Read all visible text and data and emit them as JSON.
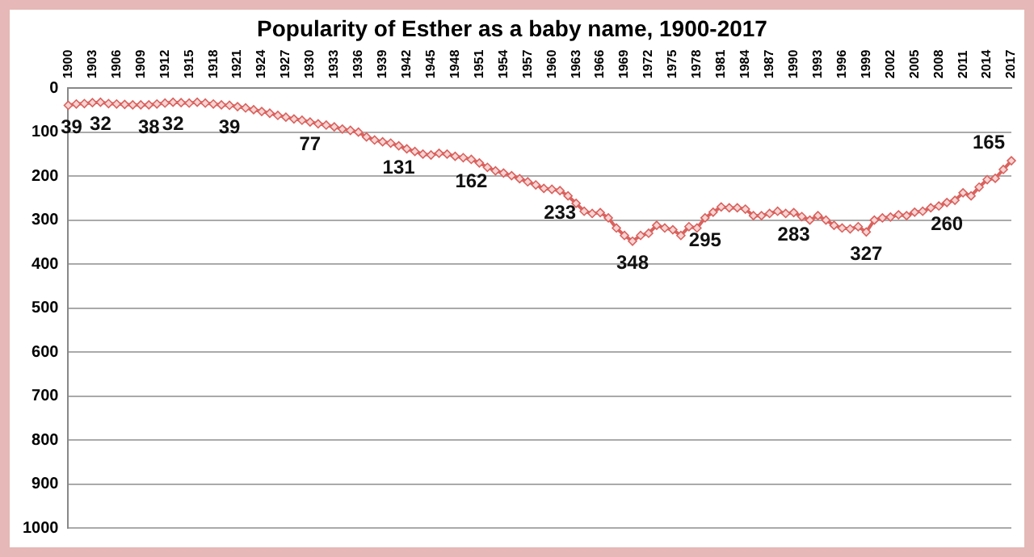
{
  "chart_data": {
    "type": "line",
    "title": "Popularity of Esther as a baby name, 1900-2017",
    "categories": [
      "1900",
      null,
      null,
      "1903",
      null,
      null,
      "1906",
      null,
      null,
      "1909",
      null,
      null,
      "1912",
      null,
      null,
      "1915",
      null,
      null,
      "1918",
      null,
      null,
      "1921",
      null,
      null,
      "1924",
      null,
      null,
      "1927",
      null,
      null,
      "1930",
      null,
      null,
      "1933",
      null,
      null,
      "1936",
      null,
      null,
      "1939",
      null,
      null,
      "1942",
      null,
      null,
      "1945",
      null,
      null,
      "1948",
      null,
      null,
      "1951",
      null,
      null,
      "1954",
      null,
      null,
      "1957",
      null,
      null,
      "1960",
      null,
      null,
      "1963",
      null,
      null,
      "1966",
      null,
      null,
      "1969",
      null,
      null,
      "1972",
      null,
      null,
      "1975",
      null,
      null,
      "1978",
      null,
      null,
      "1981",
      null,
      null,
      "1984",
      null,
      null,
      "1987",
      null,
      null,
      "1990",
      null,
      null,
      "1993",
      null,
      null,
      "1996",
      null,
      null,
      "1999",
      null,
      null,
      "2002",
      null,
      null,
      "2005",
      null,
      null,
      "2008",
      null,
      null,
      "2011",
      null,
      null,
      "2014",
      null,
      null,
      "2017"
    ],
    "series": [
      {
        "color": "#d9625e",
        "values": [
          39,
          36,
          35,
          33,
          32,
          35,
          36,
          37,
          38,
          38,
          38,
          36,
          34,
          32,
          33,
          34,
          32,
          34,
          36,
          38,
          39,
          42,
          45,
          49,
          53,
          57,
          62,
          66,
          70,
          73,
          77,
          81,
          84,
          88,
          93,
          96,
          100,
          111,
          118,
          122,
          125,
          131,
          138,
          144,
          150,
          152,
          148,
          150,
          155,
          158,
          162,
          170,
          180,
          188,
          193,
          199,
          206,
          213,
          220,
          228,
          230,
          233,
          245,
          262,
          280,
          285,
          283,
          295,
          318,
          335,
          348,
          335,
          330,
          312,
          318,
          322,
          335,
          315,
          318,
          295,
          282,
          270,
          272,
          272,
          275,
          290,
          290,
          285,
          280,
          285,
          283,
          292,
          300,
          290,
          300,
          312,
          318,
          320,
          315,
          327,
          300,
          295,
          293,
          288,
          290,
          282,
          280,
          272,
          268,
          260,
          255,
          238,
          245,
          225,
          208,
          205,
          185,
          165
        ],
        "value_labels": [
          "39",
          null,
          null,
          null,
          "32",
          null,
          null,
          null,
          null,
          null,
          "38",
          null,
          null,
          "32",
          null,
          null,
          null,
          null,
          null,
          null,
          "39",
          null,
          null,
          null,
          null,
          null,
          null,
          null,
          null,
          null,
          "77",
          null,
          null,
          null,
          null,
          null,
          null,
          null,
          null,
          null,
          null,
          "131",
          null,
          null,
          null,
          null,
          null,
          null,
          null,
          null,
          "162",
          null,
          null,
          null,
          null,
          null,
          null,
          null,
          null,
          null,
          null,
          "233",
          null,
          null,
          null,
          null,
          null,
          null,
          null,
          null,
          "348",
          null,
          null,
          null,
          null,
          null,
          null,
          null,
          null,
          "295",
          null,
          null,
          null,
          null,
          null,
          null,
          null,
          null,
          null,
          null,
          "283",
          null,
          null,
          null,
          null,
          null,
          null,
          null,
          null,
          "327",
          null,
          null,
          null,
          null,
          null,
          null,
          null,
          null,
          null,
          "260",
          null,
          null,
          null,
          null,
          null,
          null,
          null,
          "165"
        ]
      }
    ],
    "ylim": [
      1000,
      0
    ],
    "yticks": [
      0,
      100,
      200,
      300,
      400,
      500,
      600,
      700,
      800,
      900,
      1000
    ],
    "grid": "y",
    "legend": false,
    "marker": "diamond",
    "line_style": "solid"
  }
}
